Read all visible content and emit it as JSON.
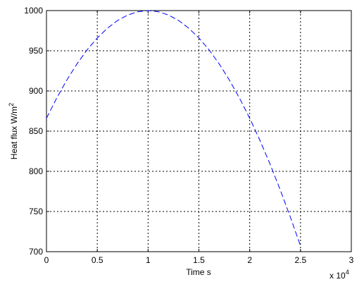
{
  "chart_data": {
    "type": "line",
    "xlabel": "Time s",
    "ylabel": "Heat flux W/m",
    "ylabel_sup": "2",
    "x_multiplier": "x 10",
    "x_multiplier_exp": "4",
    "x": [
      0,
      0.1,
      0.2,
      0.3,
      0.4,
      0.5,
      0.6,
      0.7,
      0.8,
      0.9,
      1.0,
      1.1,
      1.2,
      1.3,
      1.4,
      1.5,
      1.6,
      1.7,
      1.8,
      1.9,
      2.0,
      2.1,
      2.2,
      2.3,
      2.4,
      2.5
    ],
    "series": [
      {
        "color": "#0000ff",
        "dashed": true,
        "values": [
          866.0,
          891.0,
          913.5,
          933.6,
          951.1,
          965.9,
          978.1,
          987.7,
          994.5,
          998.6,
          1000,
          998.6,
          994.5,
          987.7,
          978.1,
          965.9,
          951.1,
          933.6,
          913.5,
          891.0,
          866.0,
          838.7,
          809.0,
          777.1,
          743.1,
          707.1
        ]
      }
    ],
    "xlim": [
      0,
      3
    ],
    "xticks": [
      0,
      0.5,
      1,
      1.5,
      2,
      2.5,
      3
    ],
    "ylim": [
      700,
      1000
    ],
    "yticks": [
      700,
      750,
      800,
      850,
      900,
      950,
      1000
    ],
    "grid": true
  }
}
